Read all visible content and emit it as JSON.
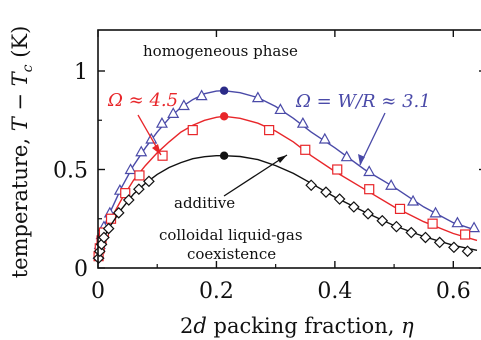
{
  "chart_data": {
    "type": "line",
    "xlabel": {
      "prefix": "2",
      "d": "d",
      "rest": " packing fraction, ",
      "eta": "η"
    },
    "ylabel": {
      "text": "temperature, ",
      "T": "T",
      "minus": " − ",
      "Tc_T": "T",
      "Tc_sub": "c",
      "unit": " (K)"
    },
    "xlim": [
      0,
      0.64
    ],
    "ylim": [
      0,
      1.0
    ],
    "x_ticks": [
      0,
      0.2,
      0.4,
      0.6
    ],
    "x_tick_labels": [
      "0",
      "0.2",
      "0.4",
      "0.6"
    ],
    "y_ticks": [
      0,
      0.5,
      1
    ],
    "y_tick_labels": [
      "0",
      "0.5",
      "1"
    ],
    "grid": false,
    "annotations": {
      "homogeneous": "homogeneous phase",
      "additive": "additive",
      "coexistence_line1": "colloidal liquid-gas",
      "coexistence_line2": "coexistence",
      "omega_red": "Ω ≈ 4.5",
      "omega_blue": "Ω = W/R ≈ 3.1"
    },
    "series": [
      {
        "color": "#4a4aa8",
        "marker": "triangle",
        "critical_point": [
          0.213,
          0.9
        ],
        "curve": [
          [
            0.001,
            0.07
          ],
          [
            0.003,
            0.12
          ],
          [
            0.006,
            0.17
          ],
          [
            0.01,
            0.21
          ],
          [
            0.02,
            0.28
          ],
          [
            0.04,
            0.41
          ],
          [
            0.06,
            0.52
          ],
          [
            0.08,
            0.61
          ],
          [
            0.1,
            0.69
          ],
          [
            0.12,
            0.76
          ],
          [
            0.14,
            0.815
          ],
          [
            0.16,
            0.855
          ],
          [
            0.18,
            0.885
          ],
          [
            0.2,
            0.898
          ],
          [
            0.213,
            0.9
          ],
          [
            0.24,
            0.89
          ],
          [
            0.27,
            0.865
          ],
          [
            0.3,
            0.82
          ],
          [
            0.33,
            0.76
          ],
          [
            0.36,
            0.69
          ],
          [
            0.4,
            0.61
          ],
          [
            0.45,
            0.5
          ],
          [
            0.5,
            0.41
          ],
          [
            0.55,
            0.31
          ],
          [
            0.6,
            0.23
          ],
          [
            0.64,
            0.19
          ]
        ],
        "markers": [
          [
            0.001,
            0.07
          ],
          [
            0.003,
            0.12
          ],
          [
            0.006,
            0.17
          ],
          [
            0.01,
            0.21
          ],
          [
            0.02,
            0.28
          ],
          [
            0.037,
            0.395
          ],
          [
            0.055,
            0.5
          ],
          [
            0.073,
            0.59
          ],
          [
            0.09,
            0.655
          ],
          [
            0.108,
            0.735
          ],
          [
            0.127,
            0.785
          ],
          [
            0.145,
            0.825
          ],
          [
            0.175,
            0.875
          ],
          [
            0.27,
            0.865
          ],
          [
            0.308,
            0.805
          ],
          [
            0.346,
            0.735
          ],
          [
            0.383,
            0.655
          ],
          [
            0.42,
            0.565
          ],
          [
            0.458,
            0.49
          ],
          [
            0.495,
            0.42
          ],
          [
            0.532,
            0.34
          ],
          [
            0.57,
            0.28
          ],
          [
            0.607,
            0.23
          ],
          [
            0.635,
            0.205
          ]
        ]
      },
      {
        "color": "#e8262a",
        "marker": "square",
        "critical_point": [
          0.213,
          0.77
        ],
        "curve": [
          [
            0.001,
            0.06
          ],
          [
            0.003,
            0.1
          ],
          [
            0.006,
            0.14
          ],
          [
            0.01,
            0.18
          ],
          [
            0.02,
            0.24
          ],
          [
            0.04,
            0.35
          ],
          [
            0.06,
            0.445
          ],
          [
            0.08,
            0.52
          ],
          [
            0.1,
            0.585
          ],
          [
            0.12,
            0.64
          ],
          [
            0.14,
            0.69
          ],
          [
            0.16,
            0.725
          ],
          [
            0.18,
            0.75
          ],
          [
            0.2,
            0.765
          ],
          [
            0.213,
            0.77
          ],
          [
            0.24,
            0.76
          ],
          [
            0.27,
            0.735
          ],
          [
            0.3,
            0.695
          ],
          [
            0.33,
            0.64
          ],
          [
            0.36,
            0.57
          ],
          [
            0.4,
            0.49
          ],
          [
            0.45,
            0.4
          ],
          [
            0.5,
            0.31
          ],
          [
            0.55,
            0.235
          ],
          [
            0.6,
            0.175
          ],
          [
            0.64,
            0.14
          ]
        ],
        "markers": [
          [
            0.001,
            0.06
          ],
          [
            0.003,
            0.1
          ],
          [
            0.006,
            0.14
          ],
          [
            0.01,
            0.18
          ],
          [
            0.022,
            0.25
          ],
          [
            0.046,
            0.38
          ],
          [
            0.07,
            0.47
          ],
          [
            0.109,
            0.57
          ],
          [
            0.16,
            0.7
          ],
          [
            0.289,
            0.7
          ],
          [
            0.35,
            0.6
          ],
          [
            0.404,
            0.5
          ],
          [
            0.458,
            0.4
          ],
          [
            0.51,
            0.3
          ],
          [
            0.565,
            0.225
          ],
          [
            0.62,
            0.17
          ]
        ]
      },
      {
        "color": "#111111",
        "marker": "diamond",
        "critical_point": [
          0.213,
          0.57
        ],
        "curve": [
          [
            0.001,
            0.05
          ],
          [
            0.003,
            0.085
          ],
          [
            0.006,
            0.12
          ],
          [
            0.01,
            0.155
          ],
          [
            0.02,
            0.21
          ],
          [
            0.04,
            0.3
          ],
          [
            0.06,
            0.375
          ],
          [
            0.08,
            0.43
          ],
          [
            0.1,
            0.475
          ],
          [
            0.12,
            0.51
          ],
          [
            0.14,
            0.535
          ],
          [
            0.16,
            0.555
          ],
          [
            0.18,
            0.565
          ],
          [
            0.2,
            0.57
          ],
          [
            0.213,
            0.57
          ],
          [
            0.24,
            0.566
          ],
          [
            0.27,
            0.55
          ],
          [
            0.3,
            0.52
          ],
          [
            0.33,
            0.48
          ],
          [
            0.36,
            0.43
          ],
          [
            0.4,
            0.36
          ],
          [
            0.45,
            0.285
          ],
          [
            0.5,
            0.215
          ],
          [
            0.55,
            0.16
          ],
          [
            0.6,
            0.115
          ],
          [
            0.64,
            0.09
          ]
        ],
        "markers": [
          [
            0.001,
            0.05
          ],
          [
            0.003,
            0.085
          ],
          [
            0.006,
            0.12
          ],
          [
            0.01,
            0.155
          ],
          [
            0.018,
            0.2
          ],
          [
            0.035,
            0.28
          ],
          [
            0.052,
            0.345
          ],
          [
            0.069,
            0.4
          ],
          [
            0.086,
            0.44
          ],
          [
            0.36,
            0.42
          ],
          [
            0.385,
            0.385
          ],
          [
            0.408,
            0.35
          ],
          [
            0.432,
            0.31
          ],
          [
            0.456,
            0.275
          ],
          [
            0.48,
            0.24
          ],
          [
            0.504,
            0.21
          ],
          [
            0.529,
            0.18
          ],
          [
            0.553,
            0.155
          ],
          [
            0.577,
            0.13
          ],
          [
            0.601,
            0.105
          ],
          [
            0.624,
            0.085
          ]
        ]
      }
    ]
  }
}
